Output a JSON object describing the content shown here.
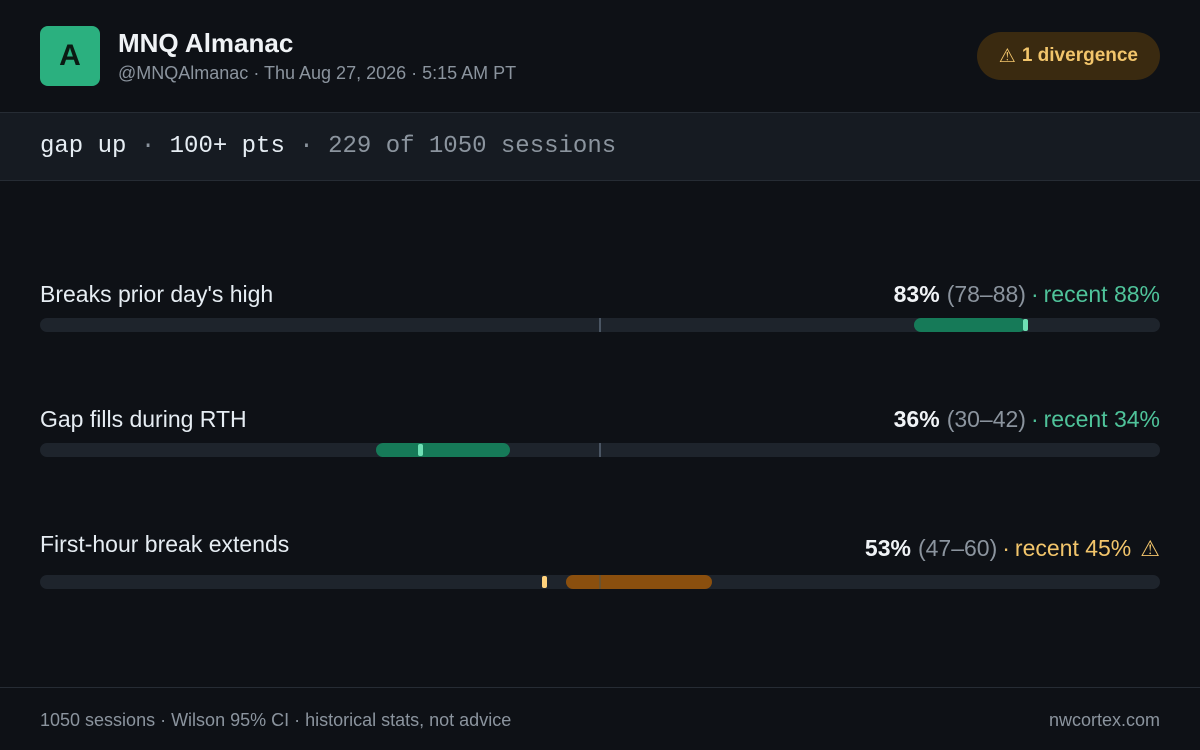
{
  "header": {
    "avatar_letter": "A",
    "title": "MNQ Almanac",
    "handle": "@MNQAlmanac",
    "datetime": "Thu Aug 27, 2026 · 5:15 AM PT",
    "badge_icon": "warning-icon",
    "badge_symbol": "⚠",
    "badge_text": "1 divergence"
  },
  "filter": {
    "direction": "gap up",
    "size": "100+ pts",
    "sample": "229 of 1050 sessions"
  },
  "stats": [
    {
      "label": "Breaks prior day's high",
      "pct": "83%",
      "ci": "(78–88)",
      "recent": "recent 88%",
      "pct_value": 83,
      "ci_low": 78,
      "ci_high": 88,
      "recent_value": 88,
      "divergent": false
    },
    {
      "label": "Gap fills during RTH",
      "pct": "36%",
      "ci": "(30–42)",
      "recent": "recent 34%",
      "pct_value": 36,
      "ci_low": 30,
      "ci_high": 42,
      "recent_value": 34,
      "divergent": false
    },
    {
      "label": "First-hour break extends",
      "pct": "53%",
      "ci": "(47–60)",
      "recent": "recent 45%",
      "pct_value": 53,
      "ci_low": 47,
      "ci_high": 60,
      "recent_value": 45,
      "divergent": true,
      "warn_symbol": "⚠"
    }
  ],
  "colors": {
    "ok_band": "#167a58",
    "ok_marker": "#6fe0b5",
    "ok_text": "#4fc39a",
    "warn_band": "#8a4f0e",
    "warn_marker": "#ffd27d",
    "warn_text": "#f2c56b"
  },
  "footer": {
    "left": "1050 sessions · Wilson 95% CI · historical stats, not advice",
    "right": "nwcortex.com"
  }
}
